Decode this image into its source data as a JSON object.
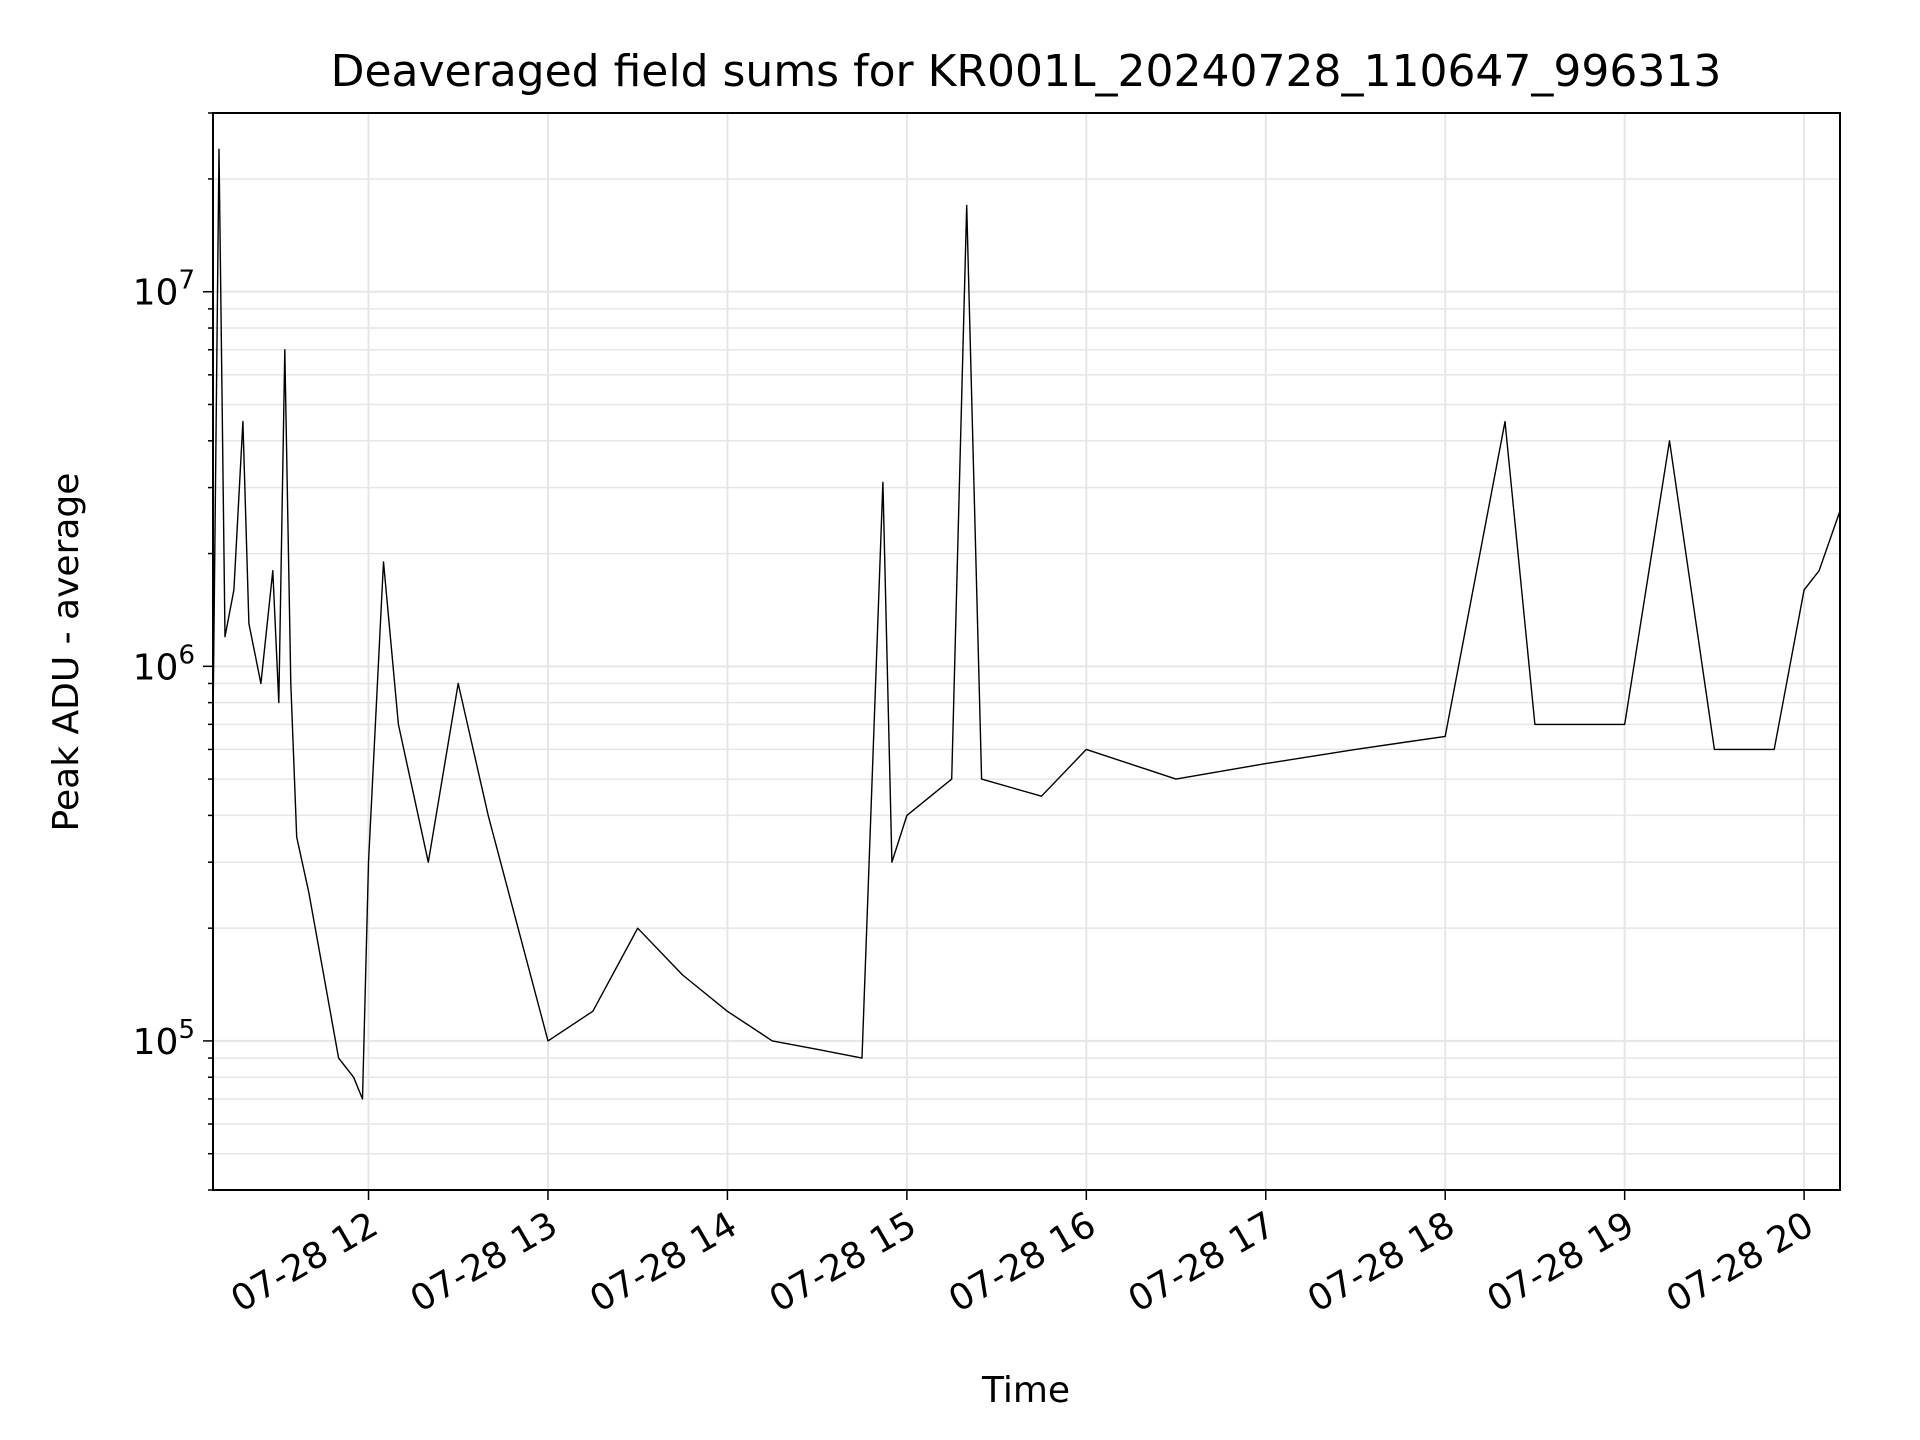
{
  "chart_data": {
    "type": "line",
    "title": "Deaveraged field sums for KR001L_20240728_110647_996313",
    "xlabel": "Time",
    "ylabel": "Peak ADU - average",
    "x_range": [
      "2024-07-28 11:08",
      "2024-07-28 20:12"
    ],
    "y_scale": "log",
    "ylim": [
      40000,
      30000000
    ],
    "grid": true,
    "x_ticks": [
      {
        "time": "2024-07-28 12:00",
        "label": "07-28 12"
      },
      {
        "time": "2024-07-28 13:00",
        "label": "07-28 13"
      },
      {
        "time": "2024-07-28 14:00",
        "label": "07-28 14"
      },
      {
        "time": "2024-07-28 15:00",
        "label": "07-28 15"
      },
      {
        "time": "2024-07-28 16:00",
        "label": "07-28 16"
      },
      {
        "time": "2024-07-28 17:00",
        "label": "07-28 17"
      },
      {
        "time": "2024-07-28 18:00",
        "label": "07-28 18"
      },
      {
        "time": "2024-07-28 19:00",
        "label": "07-28 19"
      },
      {
        "time": "2024-07-28 20:00",
        "label": "07-28 20"
      }
    ],
    "y_ticks": [
      {
        "value": 100000,
        "base": "10",
        "exp": "5"
      },
      {
        "value": 1000000,
        "base": "10",
        "exp": "6"
      },
      {
        "value": 10000000,
        "base": "10",
        "exp": "7"
      }
    ],
    "series": [
      {
        "color": "#000000",
        "points": [
          [
            "2024-07-28 11:08",
            700000
          ],
          [
            "2024-07-28 11:10",
            24000000
          ],
          [
            "2024-07-28 11:12",
            1200000
          ],
          [
            "2024-07-28 11:15",
            1600000
          ],
          [
            "2024-07-28 11:18",
            4500000
          ],
          [
            "2024-07-28 11:20",
            1300000
          ],
          [
            "2024-07-28 11:24",
            900000
          ],
          [
            "2024-07-28 11:28",
            1800000
          ],
          [
            "2024-07-28 11:30",
            800000
          ],
          [
            "2024-07-28 11:32",
            7000000
          ],
          [
            "2024-07-28 11:34",
            900000
          ],
          [
            "2024-07-28 11:36",
            350000
          ],
          [
            "2024-07-28 11:40",
            250000
          ],
          [
            "2024-07-28 11:45",
            150000
          ],
          [
            "2024-07-28 11:50",
            90000
          ],
          [
            "2024-07-28 11:55",
            80000
          ],
          [
            "2024-07-28 11:58",
            70000
          ],
          [
            "2024-07-28 12:00",
            300000
          ],
          [
            "2024-07-28 12:05",
            1900000
          ],
          [
            "2024-07-28 12:10",
            700000
          ],
          [
            "2024-07-28 12:20",
            300000
          ],
          [
            "2024-07-28 12:30",
            900000
          ],
          [
            "2024-07-28 12:40",
            400000
          ],
          [
            "2024-07-28 12:50",
            200000
          ],
          [
            "2024-07-28 13:00",
            100000
          ],
          [
            "2024-07-28 13:15",
            120000
          ],
          [
            "2024-07-28 13:30",
            200000
          ],
          [
            "2024-07-28 13:45",
            150000
          ],
          [
            "2024-07-28 14:00",
            120000
          ],
          [
            "2024-07-28 14:15",
            100000
          ],
          [
            "2024-07-28 14:30",
            95000
          ],
          [
            "2024-07-28 14:45",
            90000
          ],
          [
            "2024-07-28 14:52",
            3100000
          ],
          [
            "2024-07-28 14:55",
            300000
          ],
          [
            "2024-07-28 15:00",
            400000
          ],
          [
            "2024-07-28 15:15",
            500000
          ],
          [
            "2024-07-28 15:20",
            17000000
          ],
          [
            "2024-07-28 15:25",
            500000
          ],
          [
            "2024-07-28 15:45",
            450000
          ],
          [
            "2024-07-28 16:00",
            600000
          ],
          [
            "2024-07-28 16:30",
            500000
          ],
          [
            "2024-07-28 17:00",
            550000
          ],
          [
            "2024-07-28 17:30",
            600000
          ],
          [
            "2024-07-28 18:00",
            650000
          ],
          [
            "2024-07-28 18:20",
            4500000
          ],
          [
            "2024-07-28 18:30",
            700000
          ],
          [
            "2024-07-28 19:00",
            700000
          ],
          [
            "2024-07-28 19:15",
            4000000
          ],
          [
            "2024-07-28 19:30",
            600000
          ],
          [
            "2024-07-28 19:50",
            600000
          ],
          [
            "2024-07-28 20:00",
            1600000
          ],
          [
            "2024-07-28 20:05",
            1800000
          ],
          [
            "2024-07-28 20:12",
            2600000
          ]
        ]
      }
    ]
  }
}
